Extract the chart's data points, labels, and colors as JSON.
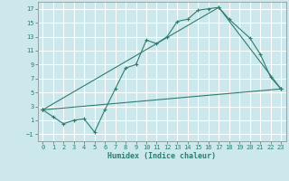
{
  "xlabel": "Humidex (Indice chaleur)",
  "xlim": [
    -0.5,
    23.5
  ],
  "ylim": [
    -2,
    18
  ],
  "xticks": [
    0,
    1,
    2,
    3,
    4,
    5,
    6,
    7,
    8,
    9,
    10,
    11,
    12,
    13,
    14,
    15,
    16,
    17,
    18,
    19,
    20,
    21,
    22,
    23
  ],
  "yticks": [
    -1,
    1,
    3,
    5,
    7,
    9,
    11,
    13,
    15,
    17
  ],
  "bg_color": "#cce8ec",
  "grid_color": "#ffffff",
  "line_color": "#2e7d6e",
  "line1_x": [
    0,
    1,
    2,
    3,
    4,
    5,
    6,
    7,
    8,
    9,
    10,
    11,
    12,
    13,
    14,
    15,
    16,
    17,
    18,
    20,
    21,
    22,
    23
  ],
  "line1_y": [
    2.5,
    1.5,
    0.5,
    1.0,
    1.2,
    -0.7,
    2.5,
    5.5,
    8.5,
    9.0,
    12.5,
    12.0,
    13.0,
    15.2,
    15.5,
    16.8,
    17.0,
    17.2,
    15.5,
    12.8,
    10.5,
    7.2,
    5.5
  ],
  "line2_x": [
    0,
    23
  ],
  "line2_y": [
    2.5,
    5.5
  ],
  "line3_x": [
    0,
    17,
    23
  ],
  "line3_y": [
    2.5,
    17.2,
    5.5
  ]
}
